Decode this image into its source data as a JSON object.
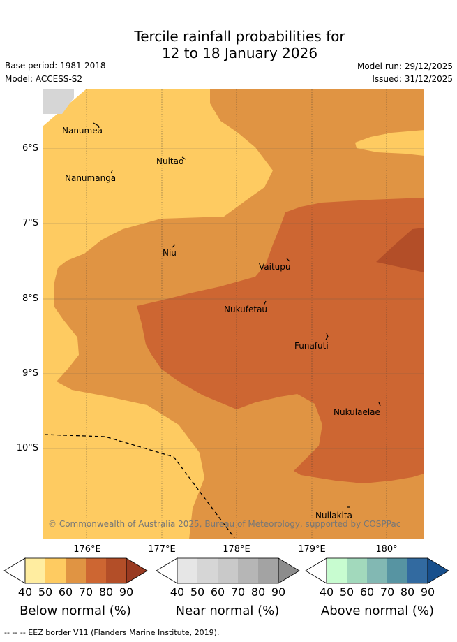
{
  "title": {
    "line1": "Tercile rainfall probabilities for",
    "line2": "12 to 18 January 2026"
  },
  "meta": {
    "base_period": "Base period: 1981-2018",
    "model": "Model: ACCESS-S2",
    "model_run": "Model run: 29/12/2025",
    "issued": "Issued: 31/12/2025"
  },
  "map": {
    "lat_labels": [
      "6°S",
      "7°S",
      "8°S",
      "9°S",
      "10°S"
    ],
    "lon_labels": [
      "176°E",
      "177°E",
      "178°E",
      "179°E",
      "180°"
    ],
    "places": [
      "Nanumea",
      "Nuitao",
      "Nanumanga",
      "Niu",
      "Vaitupu",
      "Nukufetau",
      "Funafuti",
      "Nukulaelae",
      "Nuilakita"
    ],
    "copyright": "© Commonwealth of Australia 2025, Bureau of Meteorology, supported by COSPPac"
  },
  "legend": {
    "ticks": [
      "40",
      "50",
      "60",
      "70",
      "80",
      "90"
    ],
    "below": {
      "label": "Below normal (%)",
      "colors": [
        "#ffeda0",
        "#fecb61",
        "#e09443",
        "#cd6632",
        "#b34e28",
        "#993a21"
      ]
    },
    "near": {
      "label": "Near normal (%)",
      "colors": [
        "#e6e6e6",
        "#d6d6d6",
        "#c9c9c9",
        "#b6b6b6",
        "#a3a3a3",
        "#8c8c8c"
      ]
    },
    "above": {
      "label": "Above normal (%)",
      "colors": [
        "#c8fcd0",
        "#a2d9bc",
        "#82b8b3",
        "#5794a2",
        "#326aa0",
        "#174f8c"
      ]
    }
  },
  "footer": {
    "eez_note": "-- EEZ border V11 (Flanders Marine Institute, 2019).",
    "line_prefix": "--  --"
  }
}
